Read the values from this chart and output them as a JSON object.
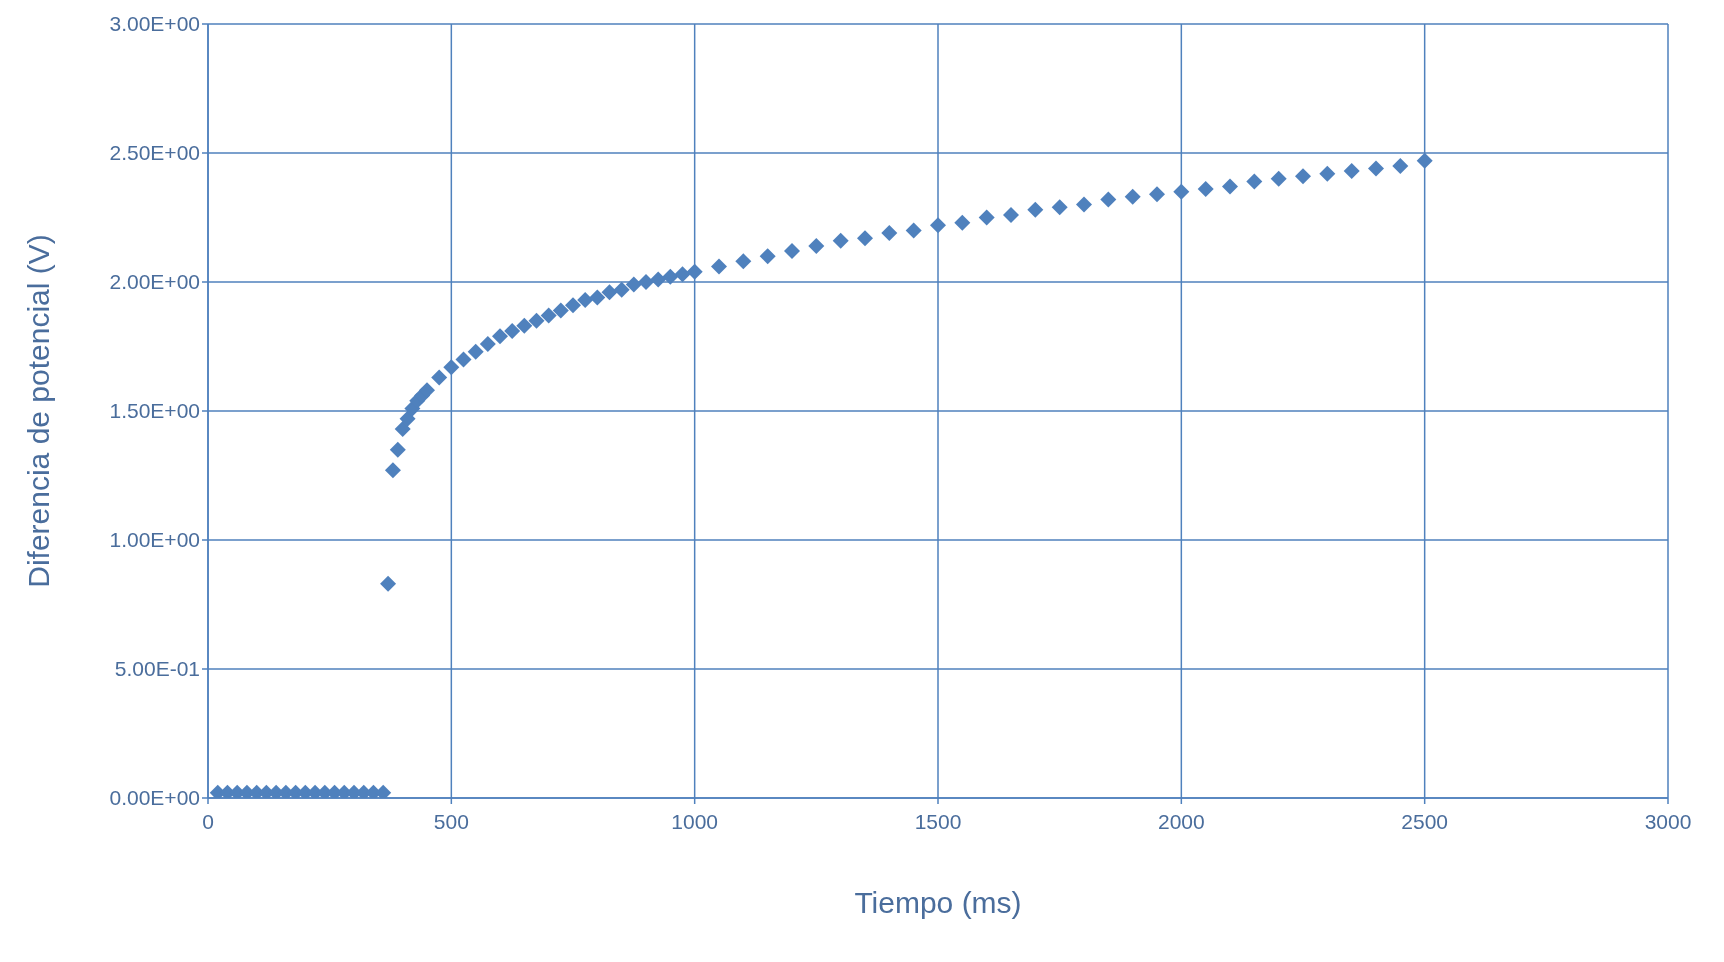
{
  "chart_data": {
    "type": "scatter",
    "xlabel": "Tiempo (ms)",
    "ylabel": "Diferencia de potencial (V)",
    "xlim": [
      0,
      3000
    ],
    "xticks": [
      0,
      500,
      1000,
      1500,
      2000,
      2500,
      3000
    ],
    "ylim": [
      0,
      3
    ],
    "yticks": [
      {
        "value": 0,
        "label": "0.00E+00"
      },
      {
        "value": 0.5,
        "label": "5.00E-01"
      },
      {
        "value": 1,
        "label": "1.00E+00"
      },
      {
        "value": 1.5,
        "label": "1.50E+00"
      },
      {
        "value": 2,
        "label": "2.00E+00"
      },
      {
        "value": 2.5,
        "label": "2.50E+00"
      },
      {
        "value": 3,
        "label": "3.00E+00"
      }
    ],
    "grid": true,
    "marker": "diamond",
    "legend": false,
    "series": [
      {
        "color": "#4f81bd",
        "x": [
          20,
          40,
          60,
          80,
          100,
          120,
          140,
          160,
          180,
          200,
          220,
          240,
          260,
          280,
          300,
          320,
          340,
          360,
          370,
          380,
          390,
          400,
          410,
          420,
          430,
          440,
          450,
          475,
          500,
          525,
          550,
          575,
          600,
          625,
          650,
          675,
          700,
          725,
          750,
          775,
          800,
          825,
          850,
          875,
          900,
          925,
          950,
          975,
          1000,
          1050,
          1100,
          1150,
          1200,
          1250,
          1300,
          1350,
          1400,
          1450,
          1500,
          1550,
          1600,
          1650,
          1700,
          1750,
          1800,
          1850,
          1900,
          1950,
          2000,
          2050,
          2100,
          2150,
          2200,
          2250,
          2300,
          2350,
          2400,
          2450,
          2500
        ],
        "values": [
          0.02,
          0.02,
          0.02,
          0.02,
          0.02,
          0.02,
          0.02,
          0.02,
          0.02,
          0.02,
          0.02,
          0.02,
          0.02,
          0.02,
          0.02,
          0.02,
          0.02,
          0.02,
          0.83,
          1.27,
          1.35,
          1.43,
          1.47,
          1.51,
          1.54,
          1.56,
          1.58,
          1.63,
          1.67,
          1.7,
          1.73,
          1.76,
          1.79,
          1.81,
          1.83,
          1.85,
          1.87,
          1.89,
          1.91,
          1.93,
          1.94,
          1.96,
          1.97,
          1.99,
          2.0,
          2.01,
          2.02,
          2.03,
          2.04,
          2.06,
          2.08,
          2.1,
          2.12,
          2.14,
          2.16,
          2.17,
          2.19,
          2.2,
          2.22,
          2.23,
          2.25,
          2.26,
          2.28,
          2.29,
          2.3,
          2.32,
          2.33,
          2.34,
          2.35,
          2.36,
          2.37,
          2.39,
          2.4,
          2.41,
          2.42,
          2.43,
          2.44,
          2.45,
          2.47
        ]
      }
    ]
  }
}
